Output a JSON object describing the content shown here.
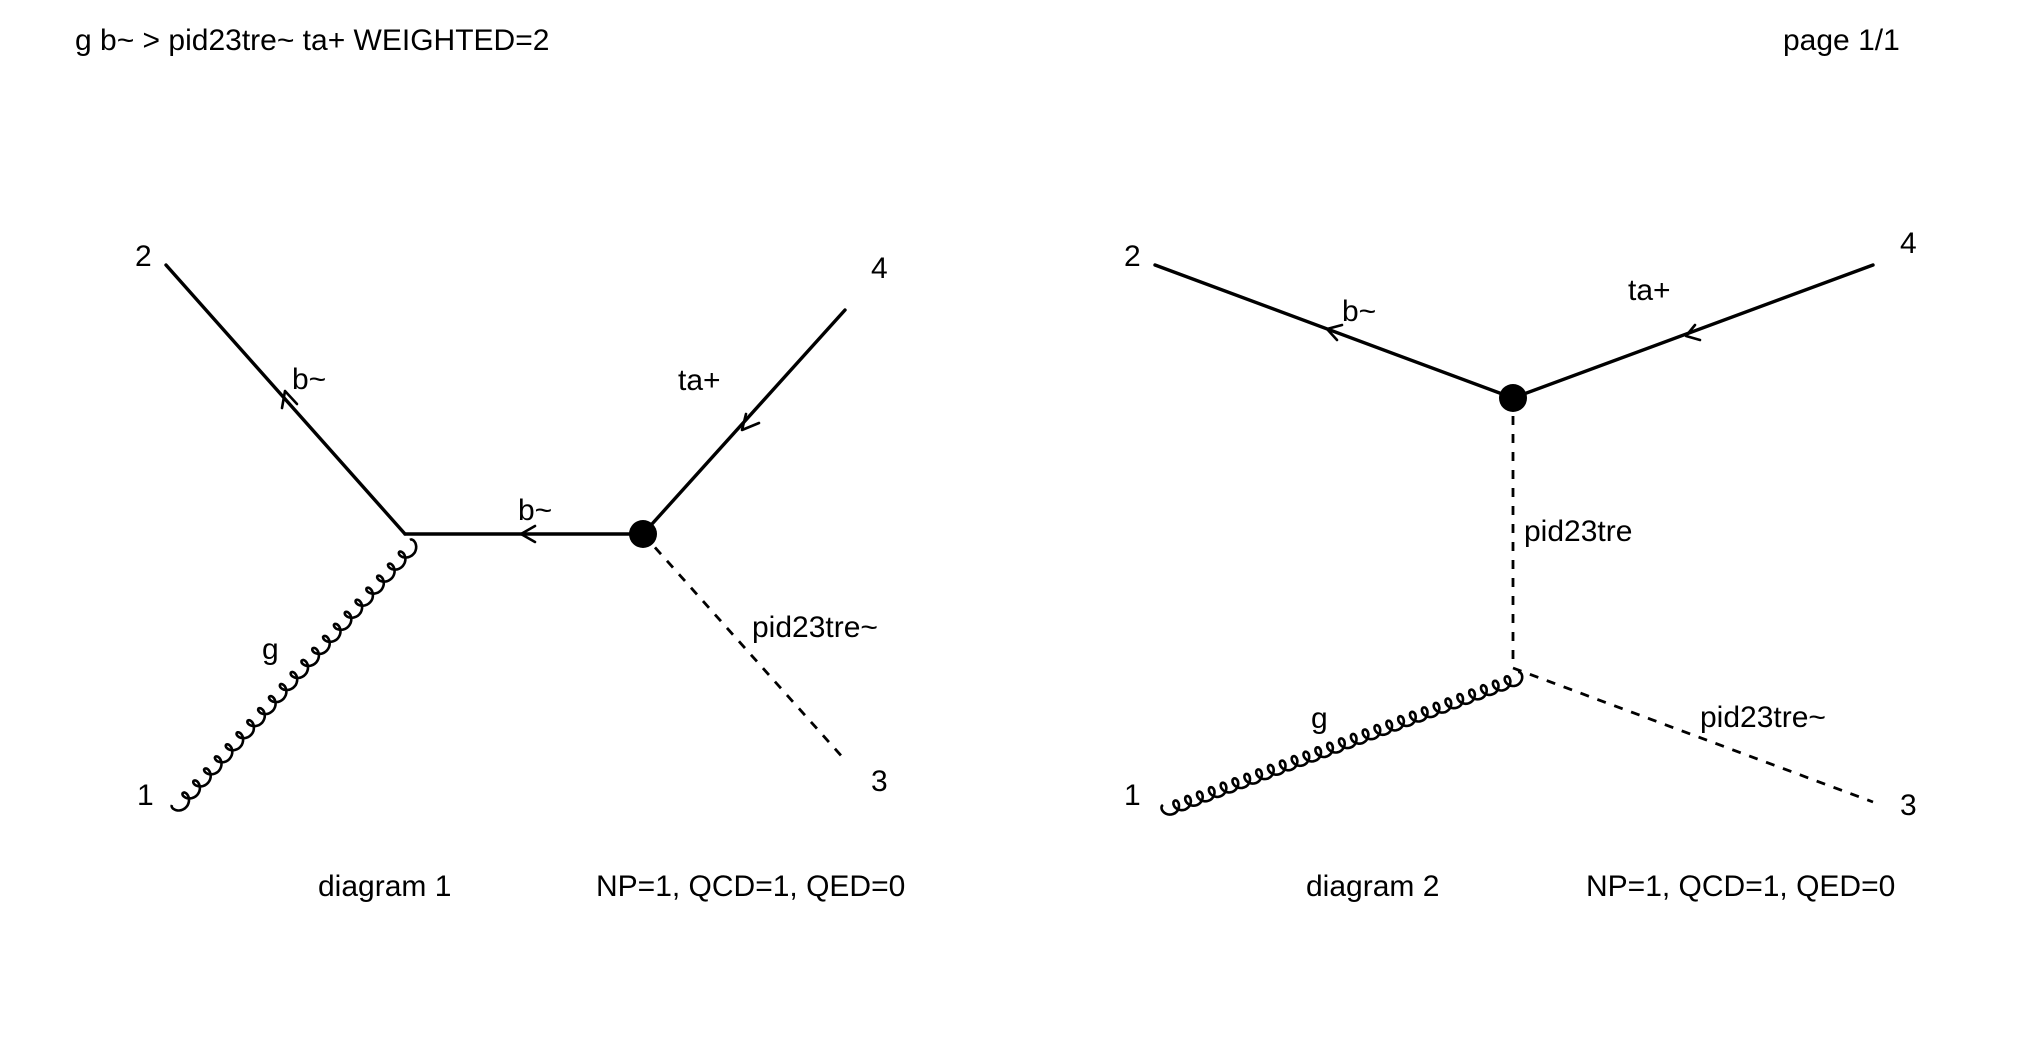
{
  "header": {
    "process": "g b~ > pid23tre~ ta+ WEIGHTED=2",
    "page": "page 1/1"
  },
  "diagrams": [
    {
      "caption": "diagram 1",
      "couplings": "NP=1, QCD=1, QED=0",
      "externals": {
        "n1": "1",
        "n2": "2",
        "n3": "3",
        "n4": "4"
      },
      "propagators": {
        "b_out": "b~",
        "b_internal": "b~",
        "ta": "ta+",
        "scalar": "pid23tre~",
        "gluon": "g"
      }
    },
    {
      "caption": "diagram 2",
      "couplings": "NP=1, QCD=1, QED=0",
      "externals": {
        "n1": "1",
        "n2": "2",
        "n3": "3",
        "n4": "4"
      },
      "propagators": {
        "b_out": "b~",
        "ta": "ta+",
        "scalar_internal": "pid23tre",
        "scalar_out": "pid23tre~",
        "gluon": "g"
      }
    }
  ]
}
